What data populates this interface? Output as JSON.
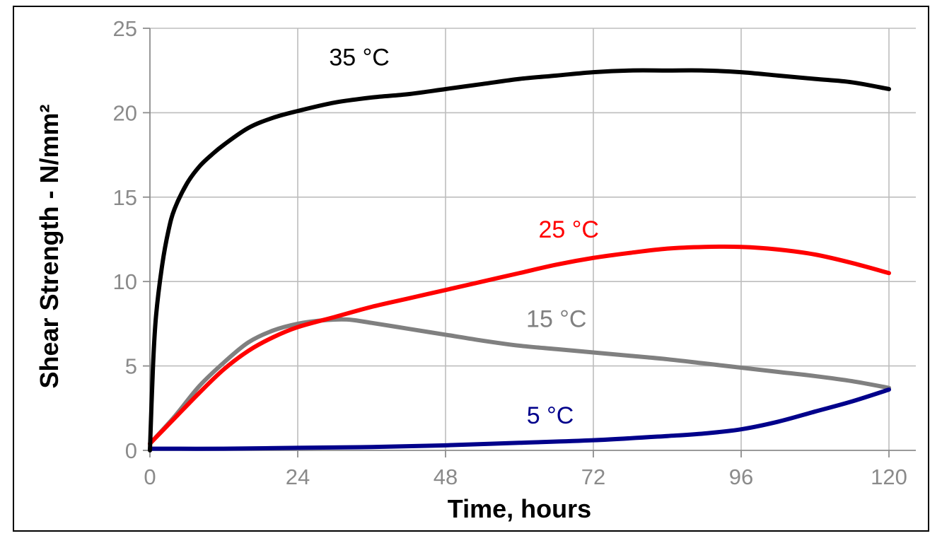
{
  "chart_data": {
    "type": "line",
    "title": "",
    "xlabel": "Time, hours",
    "ylabel": "Shear Strength - N/mm²",
    "xlim": [
      0,
      120
    ],
    "ylim": [
      0,
      25
    ],
    "x_ticks": [
      0,
      24,
      48,
      72,
      96,
      120
    ],
    "y_ticks": [
      0,
      5,
      10,
      15,
      20,
      25
    ],
    "grid": true,
    "legend": "none",
    "series": [
      {
        "name": "35 °C",
        "color": "#000000",
        "label_at": [
          34,
          22.8
        ],
        "x": [
          0,
          0.5,
          1,
          2,
          3,
          4,
          6,
          8,
          10,
          12,
          16,
          20,
          24,
          30,
          36,
          42,
          48,
          54,
          60,
          66,
          72,
          78,
          84,
          90,
          96,
          102,
          108,
          114,
          120
        ],
        "y": [
          0,
          5.0,
          8.0,
          11.0,
          13.0,
          14.3,
          15.8,
          16.8,
          17.5,
          18.1,
          19.1,
          19.7,
          20.1,
          20.6,
          20.9,
          21.1,
          21.4,
          21.7,
          22.0,
          22.2,
          22.4,
          22.5,
          22.5,
          22.5,
          22.4,
          22.2,
          22.0,
          21.8,
          21.4
        ]
      },
      {
        "name": "25 °C",
        "color": "#ff0000",
        "label_at": [
          68,
          12.6
        ],
        "x": [
          0,
          4,
          8,
          12,
          16,
          20,
          24,
          30,
          36,
          42,
          48,
          54,
          60,
          66,
          72,
          78,
          84,
          90,
          96,
          102,
          108,
          114,
          120
        ],
        "y": [
          0.4,
          1.9,
          3.4,
          4.8,
          5.9,
          6.7,
          7.3,
          7.9,
          8.5,
          9.0,
          9.5,
          10.0,
          10.5,
          11.0,
          11.4,
          11.7,
          11.95,
          12.05,
          12.05,
          11.9,
          11.6,
          11.1,
          10.5
        ]
      },
      {
        "name": "15 °C",
        "color": "#808080",
        "label_at": [
          66,
          7.3
        ],
        "x": [
          0,
          4,
          8,
          12,
          16,
          20,
          24,
          28,
          32,
          36,
          42,
          48,
          54,
          60,
          66,
          72,
          78,
          84,
          90,
          96,
          102,
          108,
          114,
          120
        ],
        "y": [
          0.4,
          2.0,
          3.8,
          5.2,
          6.4,
          7.1,
          7.5,
          7.7,
          7.75,
          7.55,
          7.2,
          6.85,
          6.5,
          6.2,
          6.0,
          5.8,
          5.6,
          5.4,
          5.15,
          4.9,
          4.65,
          4.4,
          4.1,
          3.7
        ]
      },
      {
        "name": "5 °C",
        "color": "#00008b",
        "label_at": [
          65,
          1.6
        ],
        "x": [
          0,
          12,
          24,
          36,
          48,
          60,
          72,
          84,
          90,
          96,
          102,
          108,
          114,
          120
        ],
        "y": [
          0.1,
          0.1,
          0.15,
          0.2,
          0.3,
          0.45,
          0.6,
          0.85,
          1.0,
          1.25,
          1.7,
          2.3,
          2.9,
          3.6
        ]
      }
    ]
  }
}
